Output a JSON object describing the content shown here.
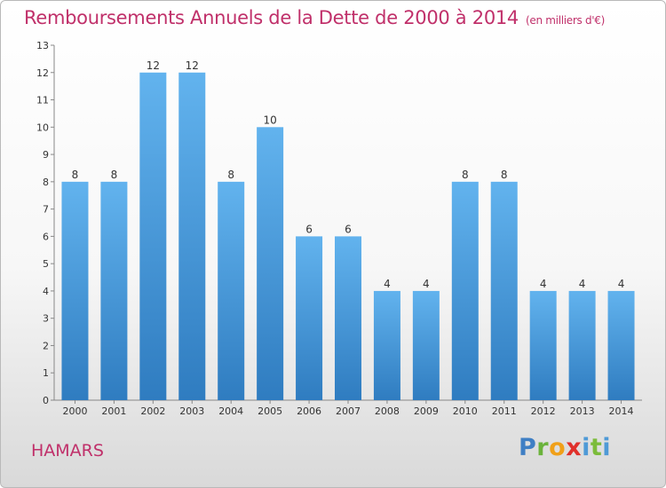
{
  "header": {
    "title": "Remboursements Annuels de la Dette de 2000 à 2014",
    "unit": "(en milliers d'€)"
  },
  "footer": {
    "city": "HAMARS",
    "logo": "Proxiti"
  },
  "colors": {
    "title": "#c0306a",
    "bar_top": "#62b3ee",
    "bar_bottom": "#2f7cc0",
    "grid": "#999999"
  },
  "chart_data": {
    "type": "bar",
    "title": "Remboursements Annuels de la Dette de 2000 à 2014",
    "subtitle": "(en milliers d'€)",
    "xlabel": "",
    "ylabel": "",
    "categories": [
      "2000",
      "2001",
      "2002",
      "2003",
      "2004",
      "2005",
      "2006",
      "2007",
      "2008",
      "2009",
      "2010",
      "2011",
      "2012",
      "2013",
      "2014"
    ],
    "values": [
      8,
      8,
      12,
      12,
      8,
      10,
      6,
      6,
      4,
      4,
      8,
      8,
      4,
      4,
      4
    ],
    "ylim": [
      0,
      13
    ],
    "yticks": [
      0,
      1,
      2,
      3,
      4,
      5,
      6,
      7,
      8,
      9,
      10,
      11,
      12,
      13
    ],
    "grid": false,
    "legend": "none",
    "data_labels": true
  }
}
